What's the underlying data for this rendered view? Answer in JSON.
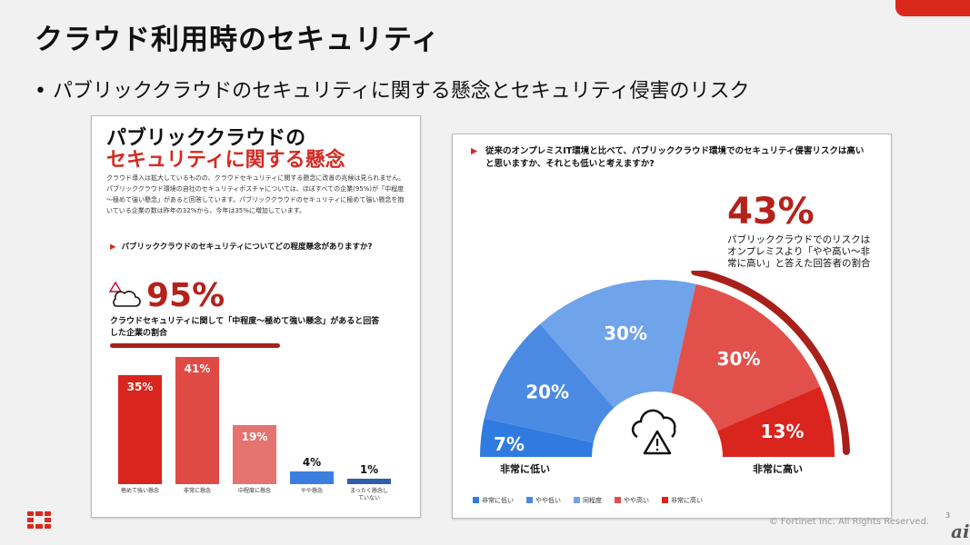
{
  "slide": {
    "title": "クラウド利用時のセキュリティ",
    "bullet": "パブリッククラウドのセキュリティに関する懸念とセキュリティ侵害のリスク",
    "footer": "© Fortinet Inc. All Rights Reserved.",
    "page": "3",
    "watermark": "ai"
  },
  "left": {
    "title1": "パブリッククラウドの",
    "title2": "セキュリティに関する懸念",
    "body": "クラウド導入は拡大しているものの、クラウドセキュリティに関する懸念に改善の兆候は見られません。パブリッククラウド環境の自社のセキュリティポスチャについては、ほぼすべての企業(95%)が「中程度～極めて強い懸念」があると回答しています。パブリッククラウドのセキュリティに極めて強い懸念を抱いている企業の数は昨年の32%から、今年は35%に増加しています。",
    "question": "パブリッククラウドのセキュリティについてどの程度懸念がありますか?",
    "big": "95%",
    "caption": "クラウドセキュリティに関して「中程度～極めて強い懸念」があると回答した企業の割合"
  },
  "right": {
    "question": "従来のオンプレミスIT環境と比べて、パブリッククラウド環境でのセキュリティ侵害リスクは高いと思いますか、それとも低いと考えますか?",
    "big": "43%",
    "caption": "パブリッククラウドでのリスクはオンプレミスより「やや高い～非常に高い」と答えた回答者の割合",
    "low_label": "非常に低い",
    "high_label": "非常に高い"
  },
  "chart_data": [
    {
      "type": "bar",
      "categories": [
        "極めて強い懸念",
        "非常に懸念",
        "中程度に懸念",
        "やや懸念",
        "まったく懸念していない"
      ],
      "values": [
        35,
        41,
        19,
        4,
        1
      ],
      "labels": [
        "35%",
        "41%",
        "19%",
        "4%",
        "1%"
      ],
      "colors": [
        "#d9251d",
        "#e04a45",
        "#e57370",
        "#3a7ee0",
        "#2d5fae"
      ],
      "ylim": [
        0,
        41
      ]
    },
    {
      "type": "pie",
      "subtype": "semicircle",
      "categories": [
        "非常に低い",
        "やや低い",
        "同程度",
        "やや高い",
        "非常に高い"
      ],
      "values": [
        7,
        20,
        30,
        30,
        13
      ],
      "labels": [
        "7%",
        "20%",
        "30%",
        "30%",
        "13%"
      ],
      "colors": [
        "#2f7be0",
        "#4a8ae3",
        "#6fa3ea",
        "#e2504b",
        "#d9251d"
      ]
    }
  ]
}
